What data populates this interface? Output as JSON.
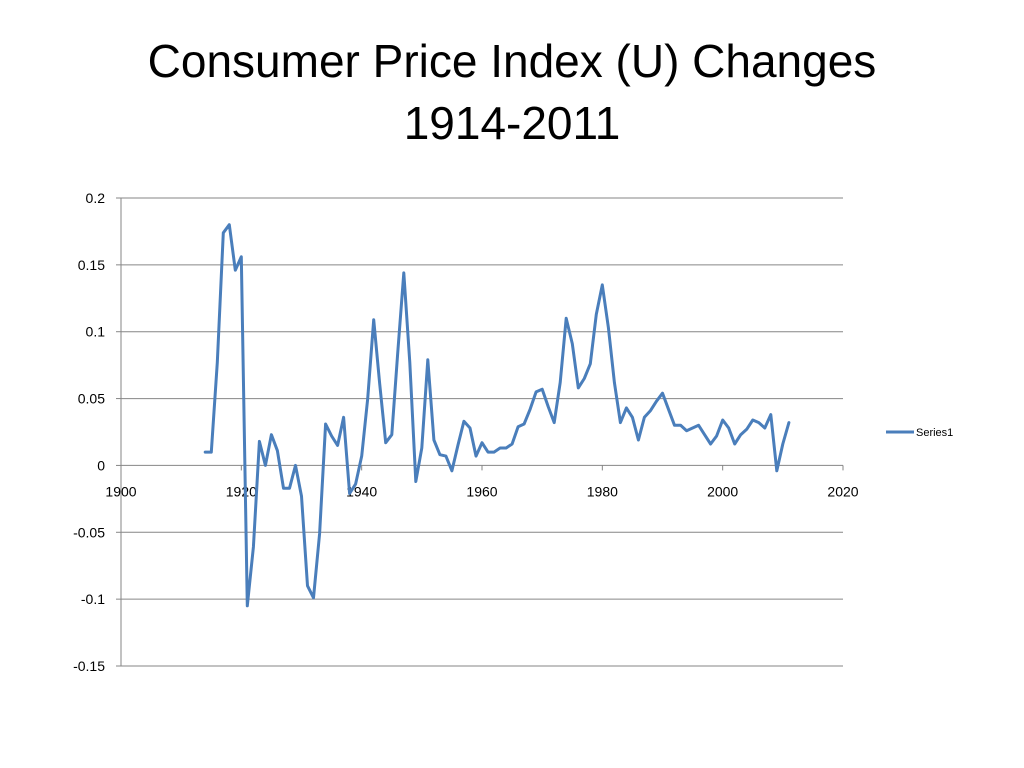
{
  "title": {
    "line1": "Consumer Price Index (U) Changes",
    "line2": "1914-2011"
  },
  "colors": {
    "series": "#4a7ebb",
    "gridline": "#868686",
    "axis": "#868686"
  },
  "chart_data": {
    "type": "line",
    "title": "Consumer Price Index (U) Changes 1914-2011",
    "xlabel": "",
    "ylabel": "",
    "xlim": [
      1900,
      2020
    ],
    "ylim": [
      -0.15,
      0.2
    ],
    "x_ticks": [
      1900,
      1920,
      1940,
      1960,
      1980,
      2000,
      2020
    ],
    "y_ticks": [
      -0.15,
      -0.1,
      -0.05,
      0,
      0.05,
      0.1,
      0.15,
      0.2
    ],
    "x_tick_labels": [
      "1900",
      "1920",
      "1940",
      "1960",
      "1980",
      "2000",
      "2020"
    ],
    "y_tick_labels": [
      "-0.15",
      "-0.1",
      "-0.05",
      "0",
      "0.05",
      "0.1",
      "0.15",
      "0.2"
    ],
    "grid": "horizontal",
    "legend_position": "right",
    "series": [
      {
        "name": "Series1",
        "x": [
          1914,
          1915,
          1916,
          1917,
          1918,
          1919,
          1920,
          1921,
          1922,
          1923,
          1924,
          1925,
          1926,
          1927,
          1928,
          1929,
          1930,
          1931,
          1932,
          1933,
          1934,
          1935,
          1936,
          1937,
          1938,
          1939,
          1940,
          1941,
          1942,
          1943,
          1944,
          1945,
          1946,
          1947,
          1948,
          1949,
          1950,
          1951,
          1952,
          1953,
          1954,
          1955,
          1956,
          1957,
          1958,
          1959,
          1960,
          1961,
          1962,
          1963,
          1964,
          1965,
          1966,
          1967,
          1968,
          1969,
          1970,
          1971,
          1972,
          1973,
          1974,
          1975,
          1976,
          1977,
          1978,
          1979,
          1980,
          1981,
          1982,
          1983,
          1984,
          1985,
          1986,
          1987,
          1988,
          1989,
          1990,
          1991,
          1992,
          1993,
          1994,
          1995,
          1996,
          1997,
          1998,
          1999,
          2000,
          2001,
          2002,
          2003,
          2004,
          2005,
          2006,
          2007,
          2008,
          2009,
          2010,
          2011
        ],
        "values": [
          0.01,
          0.01,
          0.077,
          0.174,
          0.18,
          0.146,
          0.156,
          -0.105,
          -0.061,
          0.018,
          0.0,
          0.023,
          0.011,
          -0.017,
          -0.017,
          0.0,
          -0.023,
          -0.09,
          -0.099,
          -0.051,
          0.031,
          0.022,
          0.015,
          0.036,
          -0.021,
          -0.014,
          0.007,
          0.05,
          0.109,
          0.061,
          0.017,
          0.023,
          0.085,
          0.144,
          0.077,
          -0.012,
          0.013,
          0.079,
          0.019,
          0.008,
          0.007,
          -0.004,
          0.015,
          0.033,
          0.028,
          0.007,
          0.017,
          0.01,
          0.01,
          0.013,
          0.013,
          0.016,
          0.029,
          0.031,
          0.042,
          0.055,
          0.057,
          0.044,
          0.032,
          0.062,
          0.11,
          0.091,
          0.058,
          0.065,
          0.076,
          0.113,
          0.135,
          0.103,
          0.062,
          0.032,
          0.043,
          0.036,
          0.019,
          0.036,
          0.041,
          0.048,
          0.054,
          0.042,
          0.03,
          0.03,
          0.026,
          0.028,
          0.03,
          0.023,
          0.016,
          0.022,
          0.034,
          0.028,
          0.016,
          0.023,
          0.027,
          0.034,
          0.032,
          0.028,
          0.038,
          -0.004,
          0.016,
          0.032
        ]
      }
    ]
  }
}
